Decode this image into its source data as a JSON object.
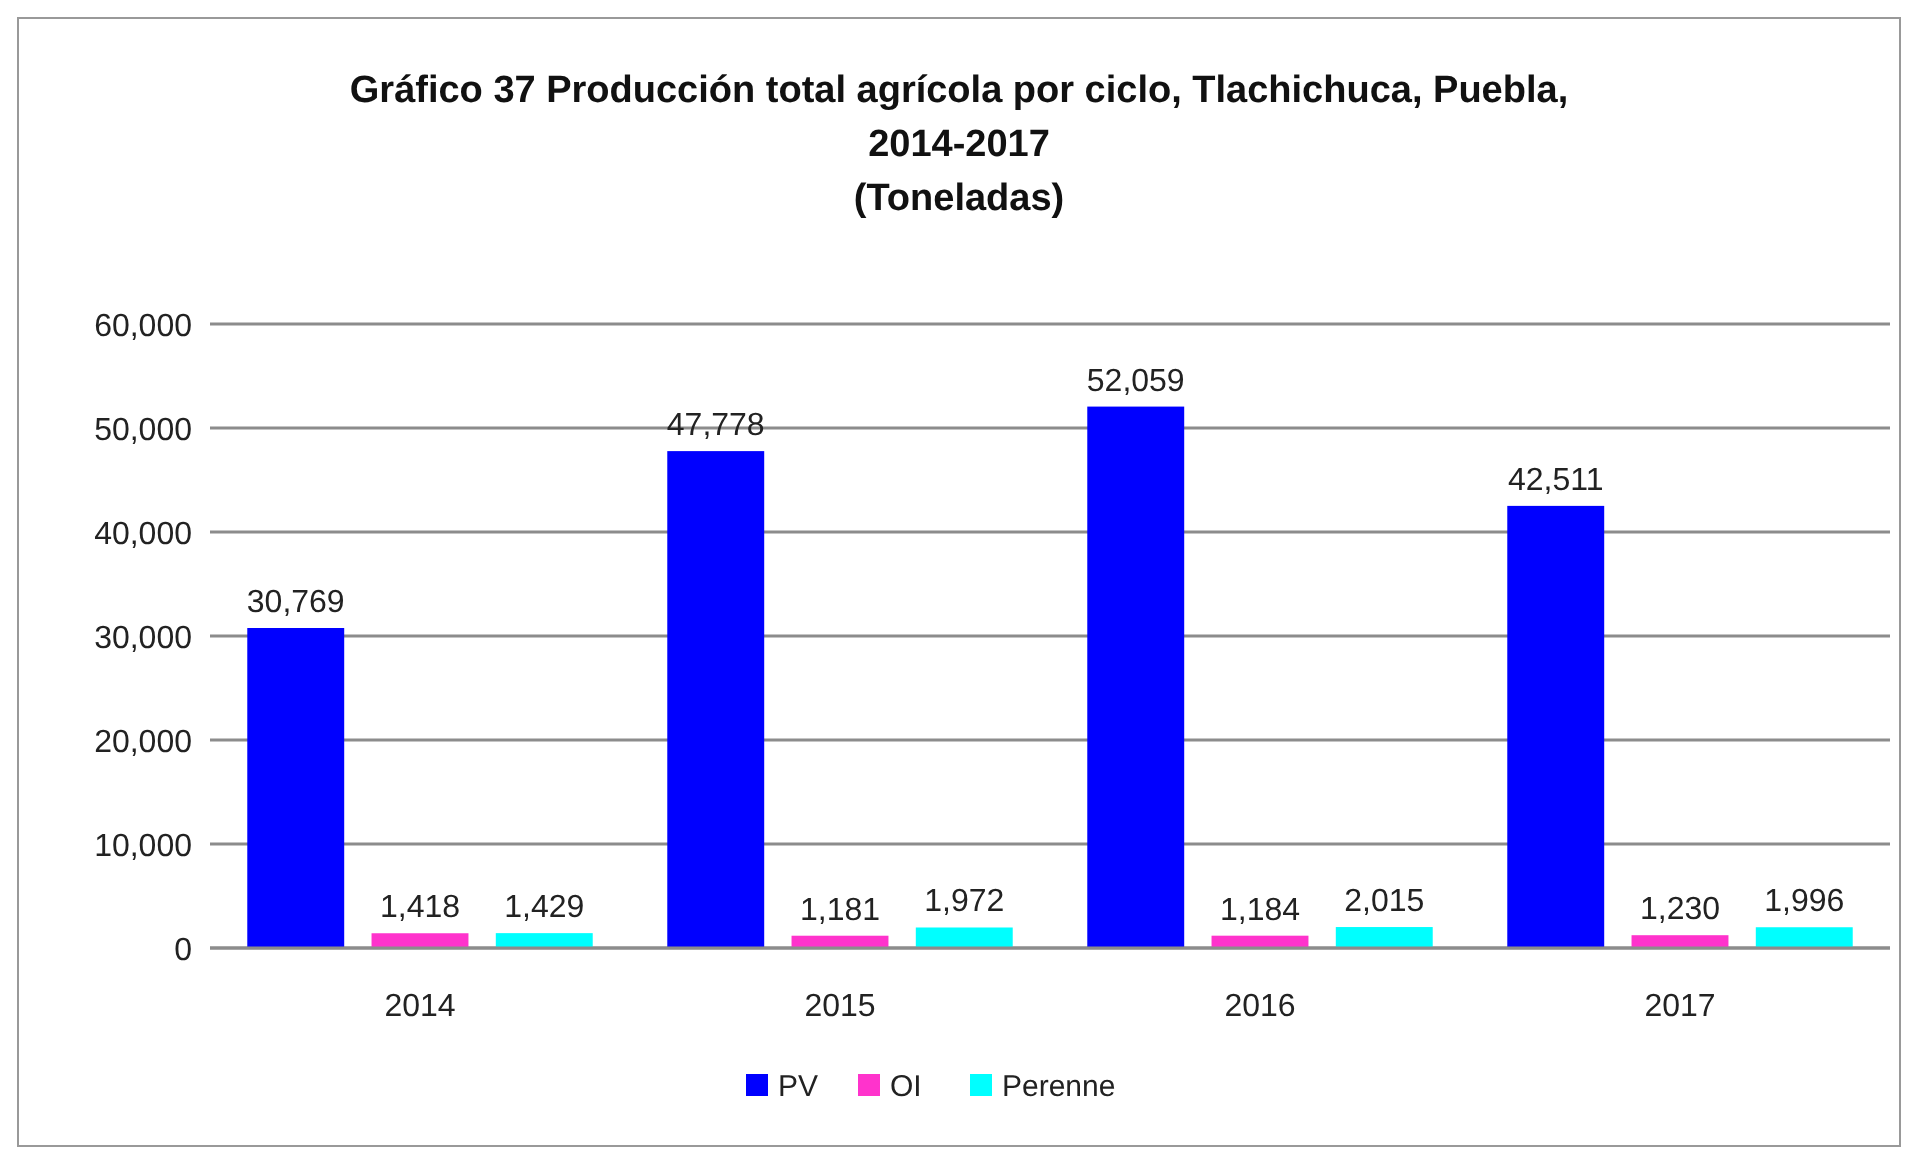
{
  "chart_data": {
    "type": "bar",
    "title": "Gráfico 37 Producción total agrícola por ciclo, Tlachichuca, Puebla, 2014-2017",
    "subtitle": "(Toneladas)",
    "categories": [
      "2014",
      "2015",
      "2016",
      "2017"
    ],
    "series": [
      {
        "name": "PV",
        "color": "#0000ff",
        "values": [
          30769,
          47778,
          52059,
          42511
        ],
        "value_labels": [
          "30,769",
          "47,778",
          "52,059",
          "42,511"
        ]
      },
      {
        "name": "OI",
        "color": "#ff33cc",
        "values": [
          1418,
          1181,
          1184,
          1230
        ],
        "value_labels": [
          "1,418",
          "1,181",
          "1,184",
          "1,230"
        ]
      },
      {
        "name": "Perenne",
        "color": "#00ffff",
        "values": [
          1429,
          1972,
          2015,
          1996
        ],
        "value_labels": [
          "1,429",
          "1,972",
          "2,015",
          "1,996"
        ]
      }
    ],
    "ylim": [
      0,
      60000
    ],
    "yticks": [
      {
        "value": 0,
        "label": "0"
      },
      {
        "value": 10000,
        "label": "10,000"
      },
      {
        "value": 20000,
        "label": "20,000"
      },
      {
        "value": 30000,
        "label": "30,000"
      },
      {
        "value": 40000,
        "label": "40,000"
      },
      {
        "value": 50000,
        "label": "50,000"
      },
      {
        "value": 60000,
        "label": "60,000"
      }
    ],
    "grid": "y",
    "legend": "bottom"
  }
}
